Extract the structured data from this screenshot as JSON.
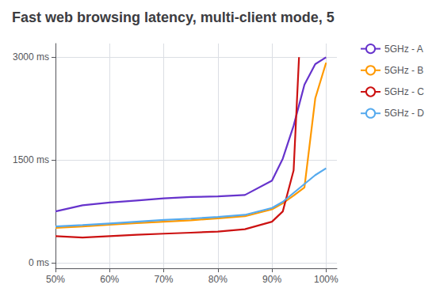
{
  "chart_data": {
    "type": "line",
    "title": "Fast web browsing latency, multi-client mode, 5",
    "xlim": [
      50,
      102
    ],
    "xticks": [
      {
        "value": 50,
        "label": "50%"
      },
      {
        "value": 60,
        "label": "60%"
      },
      {
        "value": 70,
        "label": "70%"
      },
      {
        "value": 80,
        "label": "80%"
      },
      {
        "value": 90,
        "label": "90%"
      },
      {
        "value": 100,
        "label": "100%"
      }
    ],
    "ylim": [
      -80,
      3200
    ],
    "yticks": [
      {
        "value": 0,
        "label": "0 ms"
      },
      {
        "value": 1500,
        "label": "1500 ms"
      },
      {
        "value": 3000,
        "label": "3000 ms"
      }
    ],
    "grid": true,
    "legend": "upper right",
    "series": [
      {
        "name": "5GHz - A",
        "color": "#6633cc",
        "x": [
          50,
          55,
          60,
          65,
          70,
          75,
          80,
          85,
          90,
          92,
          94,
          96,
          98,
          100
        ],
        "values": [
          750,
          840,
          880,
          910,
          940,
          960,
          970,
          990,
          1200,
          1520,
          2000,
          2600,
          2900,
          3000
        ]
      },
      {
        "name": "5GHz - B",
        "color": "#ff9900",
        "x": [
          50,
          55,
          60,
          65,
          70,
          75,
          80,
          85,
          90,
          92,
          94,
          96,
          98,
          100
        ],
        "values": [
          510,
          530,
          555,
          580,
          600,
          620,
          650,
          680,
          780,
          870,
          980,
          1100,
          2400,
          2920
        ]
      },
      {
        "name": "5GHz - C",
        "color": "#cc1111",
        "x": [
          50,
          55,
          60,
          65,
          70,
          75,
          80,
          85,
          90,
          92,
          94,
          95
        ],
        "values": [
          390,
          370,
          390,
          410,
          425,
          440,
          455,
          490,
          600,
          750,
          1350,
          3000
        ]
      },
      {
        "name": "5GHz - D",
        "color": "#55aaee",
        "x": [
          50,
          55,
          60,
          65,
          70,
          75,
          80,
          85,
          90,
          92,
          94,
          96,
          98,
          100
        ],
        "values": [
          530,
          550,
          575,
          600,
          625,
          645,
          670,
          700,
          800,
          890,
          1020,
          1150,
          1280,
          1380
        ]
      }
    ]
  }
}
